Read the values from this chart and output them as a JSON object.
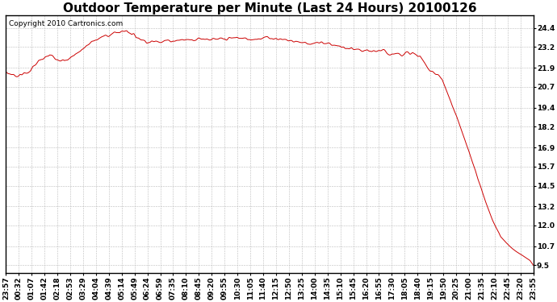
{
  "title": "Outdoor Temperature per Minute (Last 24 Hours) 20100126",
  "copyright_text": "Copyright 2010 Cartronics.com",
  "line_color": "#cc0000",
  "background_color": "#ffffff",
  "plot_bg_color": "#ffffff",
  "grid_color": "#bbbbbb",
  "yticks": [
    9.5,
    10.7,
    12.0,
    13.2,
    14.5,
    15.7,
    16.9,
    18.2,
    19.4,
    20.7,
    21.9,
    23.2,
    24.4
  ],
  "xtick_labels": [
    "23:57",
    "00:32",
    "01:07",
    "01:42",
    "02:18",
    "02:53",
    "03:29",
    "04:04",
    "04:39",
    "05:14",
    "05:49",
    "06:24",
    "06:59",
    "07:35",
    "08:10",
    "08:45",
    "09:20",
    "09:55",
    "10:30",
    "11:05",
    "11:40",
    "12:15",
    "12:50",
    "13:25",
    "14:00",
    "14:35",
    "15:10",
    "15:45",
    "16:20",
    "16:55",
    "17:30",
    "18:05",
    "18:40",
    "19:15",
    "19:50",
    "20:25",
    "21:00",
    "21:35",
    "22:10",
    "22:45",
    "23:20",
    "23:55"
  ],
  "ymin": 9.0,
  "ymax": 25.2,
  "title_fontsize": 11,
  "tick_fontsize": 6.5,
  "copyright_fontsize": 6.5,
  "knots_x": [
    0,
    30,
    60,
    90,
    120,
    140,
    160,
    180,
    210,
    240,
    270,
    300,
    330,
    360,
    390,
    420,
    450,
    480,
    510,
    540,
    570,
    600,
    630,
    660,
    690,
    720,
    750,
    780,
    810,
    840,
    870,
    900,
    930,
    960,
    990,
    1020,
    1050,
    1080,
    1110,
    1130,
    1150,
    1170,
    1190,
    1210,
    1230,
    1250,
    1270,
    1290,
    1310,
    1330,
    1350,
    1370,
    1390,
    1410,
    1430,
    1439
  ],
  "knots_y": [
    21.6,
    21.4,
    21.6,
    22.3,
    22.7,
    22.5,
    22.3,
    22.6,
    23.1,
    23.6,
    23.9,
    24.1,
    24.25,
    23.8,
    23.5,
    23.6,
    23.6,
    23.65,
    23.7,
    23.75,
    23.65,
    23.7,
    23.8,
    23.7,
    23.75,
    23.8,
    23.7,
    23.6,
    23.5,
    23.4,
    23.5,
    23.3,
    23.1,
    23.0,
    22.9,
    23.0,
    22.8,
    22.8,
    22.8,
    22.6,
    21.9,
    21.6,
    21.2,
    20.0,
    18.8,
    17.5,
    16.2,
    14.8,
    13.4,
    12.2,
    11.3,
    10.8,
    10.4,
    10.1,
    9.8,
    9.5
  ]
}
